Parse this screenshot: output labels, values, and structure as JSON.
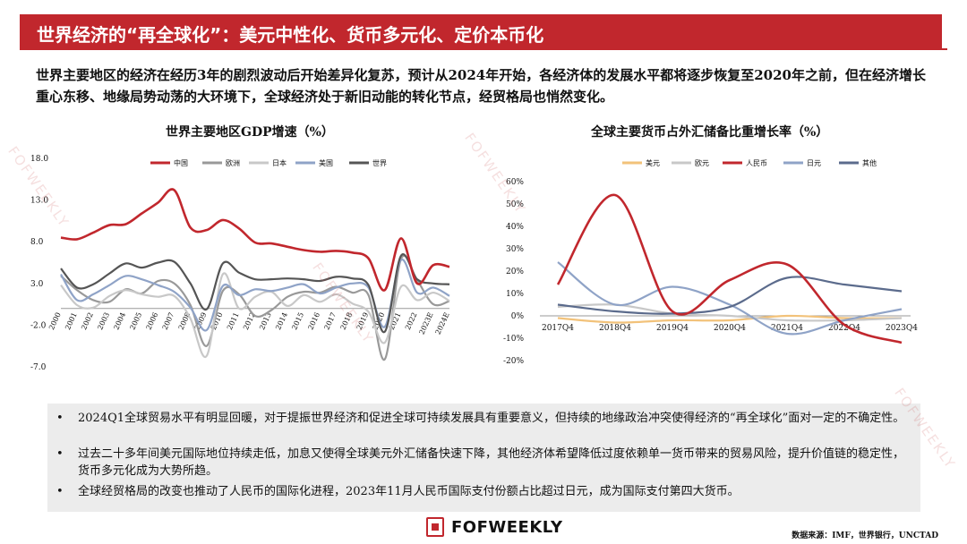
{
  "header": {
    "title": "世界经济的“再全球化”：美元中性化、货币多元化、定价本币化"
  },
  "intro": "世界主要地区的经济在经历3年的剧烈波动后开始差异化复苏，预计从2024年开始，各经济体的发展水平都将逐步恢复至2020年之前，但在经济增长重心东移、地缘局势动荡的大环境下，全球经济处于新旧动能的转化节点，经贸格局也悄然变化。",
  "chart_data": [
    {
      "type": "line",
      "title": "世界主要地区GDP增速（%）",
      "categories": [
        "2000",
        "2001",
        "2002",
        "2003",
        "2004",
        "2005",
        "2006",
        "2007",
        "2008",
        "2009",
        "2010",
        "2011",
        "2012",
        "2013",
        "2014",
        "2015",
        "2016",
        "2017",
        "2018",
        "2019",
        "2020",
        "2021",
        "2022",
        "2023E",
        "2024E"
      ],
      "yticks": [
        "18.0",
        "13.0",
        "8.0",
        "3.0",
        "-2.0",
        "-7.0"
      ],
      "ylim": [
        -7,
        18
      ],
      "series": [
        {
          "name": "中国",
          "color": "#c1272d",
          "values": [
            8.5,
            8.3,
            9.1,
            10.0,
            10.1,
            11.4,
            12.7,
            14.2,
            9.7,
            9.4,
            10.6,
            9.6,
            7.9,
            7.8,
            7.4,
            7.0,
            6.8,
            6.9,
            6.7,
            6.0,
            2.2,
            8.4,
            3.0,
            5.2,
            5.0
          ]
        },
        {
          "name": "欧洲",
          "color": "#999999",
          "values": [
            3.9,
            2.2,
            1.0,
            0.8,
            2.3,
            1.8,
            3.3,
            3.0,
            0.4,
            -4.5,
            2.1,
            1.7,
            -0.9,
            -0.2,
            1.4,
            2.0,
            1.9,
            2.6,
            1.9,
            1.6,
            -6.1,
            5.9,
            3.4,
            0.5,
            0.9
          ]
        },
        {
          "name": "日本",
          "color": "#c8c8c8",
          "values": [
            2.8,
            0.4,
            0.1,
            1.5,
            2.2,
            1.7,
            1.4,
            1.5,
            -1.2,
            -5.7,
            4.1,
            0.0,
            1.4,
            2.0,
            0.3,
            1.6,
            0.8,
            1.7,
            0.6,
            -0.4,
            -4.1,
            2.6,
            1.0,
            1.9,
            0.9
          ]
        },
        {
          "name": "美国",
          "color": "#8fa3c7",
          "values": [
            4.1,
            1.0,
            1.7,
            2.8,
            3.9,
            3.5,
            2.8,
            2.0,
            0.1,
            -2.6,
            2.7,
            1.6,
            2.3,
            2.1,
            2.5,
            2.9,
            1.8,
            2.5,
            3.0,
            2.5,
            -2.2,
            5.8,
            1.9,
            2.5,
            1.5
          ]
        },
        {
          "name": "世界",
          "color": "#555555",
          "values": [
            4.8,
            2.5,
            2.9,
            4.2,
            5.4,
            4.9,
            5.5,
            5.6,
            3.0,
            -0.1,
            5.4,
            4.3,
            3.5,
            3.5,
            3.6,
            3.5,
            3.3,
            3.8,
            3.6,
            2.8,
            -2.8,
            6.3,
            3.5,
            3.0,
            2.9
          ]
        }
      ]
    },
    {
      "type": "line",
      "title": "全球主要货币占外汇储备比重增长率（%）",
      "categories": [
        "2017Q4",
        "2018Q4",
        "2019Q4",
        "2020Q4",
        "2021Q4",
        "2022Q4",
        "2023Q4"
      ],
      "yticks": [
        "60%",
        "50%",
        "40%",
        "30%",
        "20%",
        "10%",
        "0%",
        "-10%",
        "-20%"
      ],
      "ylim": [
        -20,
        60
      ],
      "series": [
        {
          "name": "美元",
          "color": "#f2c27a",
          "values": [
            -1,
            -3,
            -2,
            -2,
            0,
            -1,
            -1
          ]
        },
        {
          "name": "欧元",
          "color": "#c8c8c8",
          "values": [
            4,
            5,
            1,
            0,
            -2,
            -2,
            -1
          ]
        },
        {
          "name": "人民币",
          "color": "#c1272d",
          "values": [
            14,
            54,
            2,
            16,
            23,
            -4,
            -12
          ]
        },
        {
          "name": "日元",
          "color": "#8fa3c7",
          "values": [
            24,
            5,
            13,
            5,
            -8,
            -2,
            3
          ]
        },
        {
          "name": "其他",
          "color": "#5b6b8c",
          "values": [
            5,
            2,
            1,
            4,
            17,
            14,
            11
          ]
        }
      ]
    }
  ],
  "bullets": [
    "2024Q1全球贸易水平有明显回暖，对于提振世界经济和促进全球可持续发展具有重要意义，但持续的地缘政治冲突使得经济的“再全球化”面对一定的不确定性。",
    "过去二十多年间美元国际地位持续走低，加息又使得全球美元外汇储备快速下降，其他经济体希望降低过度依赖单一货币带来的贸易风险，提升价值链的稳定性，货币多元化成为大势所趋。",
    "全球经贸格局的改变也推动了人民币的国际化进程，2023年11月人民币国际支付份额占比超过日元，成为国际支付第四大货币。"
  ],
  "bullet_symbol": "•",
  "logo": {
    "text": "FOFWEEKLY",
    "color": "#c1272d"
  },
  "source": "数据来源：IMF，世界银行，UNCTAD",
  "watermark": "FOFWEEKLY"
}
